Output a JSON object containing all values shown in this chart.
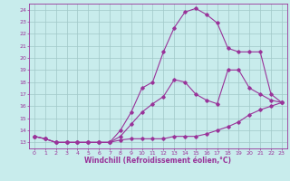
{
  "xlabel": "Windchill (Refroidissement éolien,°C)",
  "bg_color": "#c8ecec",
  "grid_color": "#a0c8c8",
  "line_color": "#993399",
  "xmin": 0,
  "xmax": 23,
  "ymin": 13,
  "ymax": 24,
  "line1_x": [
    0,
    1,
    2,
    3,
    4,
    5,
    6,
    7,
    8,
    9,
    10,
    11,
    12,
    13,
    14,
    15,
    16,
    17,
    18,
    19,
    20,
    21,
    22,
    23
  ],
  "line1_y": [
    13.5,
    13.3,
    13.0,
    13.0,
    13.0,
    13.0,
    13.0,
    13.0,
    13.2,
    13.3,
    13.3,
    13.3,
    13.3,
    13.5,
    13.5,
    13.5,
    13.7,
    14.0,
    14.3,
    14.7,
    15.3,
    15.7,
    16.0,
    16.3
  ],
  "line2_x": [
    0,
    1,
    2,
    3,
    4,
    5,
    6,
    7,
    8,
    9,
    10,
    11,
    12,
    13,
    14,
    15,
    16,
    17,
    18,
    19,
    20,
    21,
    22,
    23
  ],
  "line2_y": [
    13.5,
    13.3,
    13.0,
    13.0,
    13.0,
    13.0,
    13.0,
    13.0,
    13.5,
    14.5,
    15.5,
    16.2,
    16.8,
    18.2,
    18.0,
    17.0,
    16.5,
    16.2,
    19.0,
    19.0,
    17.5,
    17.0,
    16.5,
    16.3
  ],
  "line3_x": [
    0,
    1,
    2,
    3,
    4,
    5,
    6,
    7,
    8,
    9,
    10,
    11,
    12,
    13,
    14,
    15,
    16,
    17,
    18,
    19,
    20,
    21,
    22,
    23
  ],
  "line3_y": [
    13.5,
    13.3,
    13.0,
    13.0,
    13.0,
    13.0,
    13.0,
    13.0,
    14.0,
    15.5,
    17.5,
    18.0,
    20.5,
    22.5,
    23.8,
    24.1,
    23.6,
    22.9,
    20.8,
    20.5,
    20.5,
    20.5,
    17.0,
    16.3
  ]
}
